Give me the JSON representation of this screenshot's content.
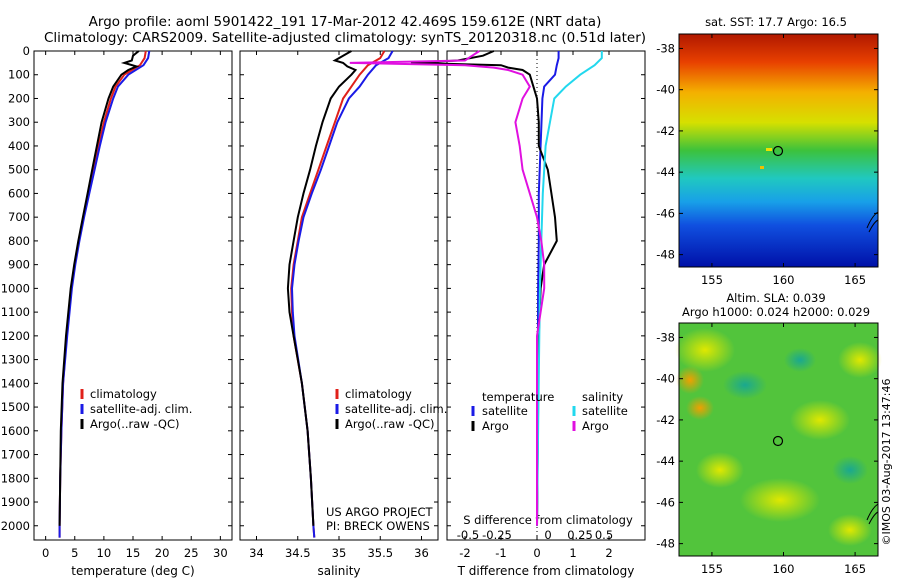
{
  "header": {
    "line1": "Argo profile: aoml 5901422_191 17-Mar-2012 42.469S 159.612E (NRT data)",
    "line2": "Climatology: CARS2009. Satellite-adjusted climatology: synTS_20120318.nc (0.51d later)"
  },
  "colors": {
    "climatology": "#e0201a",
    "satellite": "#1a1ae6",
    "argo": "#000000",
    "sal_satellite": "#22d8ee",
    "sal_argo": "#e010e0"
  },
  "depth_axis": {
    "ticks": [
      "0",
      "100",
      "200",
      "300",
      "400",
      "500",
      "600",
      "700",
      "800",
      "900",
      "1000",
      "1100",
      "1200",
      "1300",
      "1400",
      "1500",
      "1600",
      "1700",
      "1800",
      "1900",
      "2000"
    ]
  },
  "chart_data": [
    {
      "type": "line",
      "xlabel": "temperature (deg C)",
      "xlim": [
        -2,
        32
      ],
      "ylim": [
        0,
        2060
      ],
      "xticks": [
        "0",
        "5",
        "10",
        "15",
        "20",
        "25",
        "30"
      ],
      "legend": [
        "climatology",
        "satellite-adj. clim.",
        "Argo(..raw -QC)"
      ],
      "legend_position": "lower-center",
      "series": [
        {
          "name": "climatology",
          "color": "#e0201a",
          "depth": [
            0,
            30,
            60,
            100,
            150,
            200,
            300,
            400,
            500,
            600,
            700,
            800,
            900,
            1000,
            1200,
            1400,
            1600,
            1800,
            2000,
            2050
          ],
          "values": [
            17.2,
            17.0,
            16.2,
            13.5,
            12.0,
            11.2,
            10.0,
            9.1,
            8.2,
            7.3,
            6.5,
            5.7,
            5.0,
            4.4,
            3.6,
            3.0,
            2.7,
            2.5,
            2.4,
            2.4
          ]
        },
        {
          "name": "satellite-adj. clim.",
          "color": "#1a1ae6",
          "depth": [
            0,
            30,
            60,
            100,
            150,
            200,
            300,
            400,
            500,
            600,
            700,
            800,
            900,
            1000,
            1200,
            1400,
            1600,
            1800,
            2000,
            2050
          ],
          "values": [
            17.8,
            17.6,
            16.8,
            14.2,
            12.4,
            11.6,
            10.3,
            9.3,
            8.4,
            7.5,
            6.6,
            5.8,
            5.1,
            4.5,
            3.7,
            3.0,
            2.7,
            2.5,
            2.4,
            2.4
          ]
        },
        {
          "name": "Argo(..raw -QC)",
          "color": "#000000",
          "depth": [
            0,
            20,
            40,
            50,
            65,
            80,
            100,
            150,
            200,
            300,
            400,
            500,
            600,
            700,
            800,
            900,
            1000,
            1200,
            1400,
            1600,
            1800,
            2000
          ],
          "values": [
            16.0,
            15.0,
            14.8,
            13.5,
            15.6,
            14.2,
            13.0,
            11.6,
            10.8,
            9.6,
            8.8,
            8.0,
            7.2,
            6.4,
            5.6,
            4.9,
            4.3,
            3.5,
            2.9,
            2.6,
            2.5,
            2.4
          ]
        }
      ]
    },
    {
      "type": "line",
      "xlabel": "salinity",
      "xlim": [
        33.8,
        36.2
      ],
      "ylim": [
        0,
        2060
      ],
      "xticks": [
        "34",
        "34.5",
        "35",
        "35.5",
        "36"
      ],
      "legend": [
        "climatology",
        "satellite-adj. clim.",
        "Argo(..raw -QC)"
      ],
      "legend_position": "lower-center",
      "annotation": [
        "US ARGO PROJECT",
        "PI: BRECK OWENS"
      ],
      "series": [
        {
          "name": "climatology",
          "color": "#e0201a",
          "depth": [
            0,
            30,
            60,
            100,
            150,
            200,
            300,
            400,
            500,
            600,
            700,
            800,
            900,
            1000,
            1100,
            1200,
            1400,
            1600,
            1800,
            2000,
            2050
          ],
          "values": [
            35.55,
            35.5,
            35.35,
            35.25,
            35.15,
            35.05,
            34.95,
            34.85,
            34.75,
            34.65,
            34.55,
            34.5,
            34.45,
            34.42,
            34.43,
            34.45,
            34.55,
            34.62,
            34.66,
            34.69,
            34.7
          ]
        },
        {
          "name": "satellite-adj. clim.",
          "color": "#1a1ae6",
          "depth": [
            0,
            30,
            60,
            100,
            150,
            200,
            300,
            400,
            500,
            600,
            700,
            800,
            900,
            1000,
            1100,
            1200,
            1400,
            1600,
            1800,
            2000,
            2050
          ],
          "values": [
            35.65,
            35.6,
            35.45,
            35.35,
            35.25,
            35.12,
            34.98,
            34.88,
            34.78,
            34.67,
            34.57,
            34.51,
            34.46,
            34.43,
            34.44,
            34.46,
            34.55,
            34.62,
            34.66,
            34.69,
            34.7
          ]
        },
        {
          "name": "Argo(..raw -QC)",
          "color": "#000000",
          "depth": [
            0,
            20,
            40,
            50,
            65,
            80,
            100,
            150,
            200,
            300,
            400,
            500,
            600,
            700,
            800,
            900,
            1000,
            1100,
            1200,
            1300,
            1400,
            1600,
            1800,
            2000
          ],
          "values": [
            35.15,
            35.05,
            34.95,
            35.05,
            35.1,
            35.2,
            35.15,
            35.0,
            34.9,
            34.8,
            34.72,
            34.65,
            34.57,
            34.5,
            34.45,
            34.4,
            34.38,
            34.4,
            34.45,
            34.5,
            34.55,
            34.62,
            34.66,
            34.69
          ]
        }
      ]
    },
    {
      "type": "line",
      "xlabel": "T difference from climatology",
      "top_label": "S difference from climatology",
      "xlim": [
        -2.5,
        3
      ],
      "ylim": [
        0,
        2060
      ],
      "xticks": [
        "-2",
        "-1",
        "0",
        "1",
        "2"
      ],
      "sticks": [
        "-0.5",
        "-0.25",
        "0",
        "0.25",
        "0.5"
      ],
      "legend_temperature": [
        "temperature",
        "satellite",
        "Argo"
      ],
      "legend_salinity": [
        "salinity",
        "satellite",
        "Argo"
      ],
      "legend_position": "lower-center",
      "series": [
        {
          "name": "temperature satellite",
          "color": "#1a1ae6",
          "depth": [
            0,
            30,
            60,
            100,
            150,
            200,
            400,
            600,
            800,
            1000,
            1500,
            2000
          ],
          "values": [
            0.6,
            0.6,
            0.55,
            0.5,
            0.2,
            0.15,
            0.1,
            0.05,
            0.05,
            0.03,
            0.02,
            0.0
          ]
        },
        {
          "name": "temperature Argo",
          "color": "#000000",
          "depth": [
            0,
            20,
            40,
            50,
            60,
            70,
            80,
            100,
            150,
            200,
            300,
            400,
            500,
            600,
            700,
            800,
            900,
            1000,
            1200,
            1500,
            2000
          ],
          "values": [
            -1.2,
            -1.5,
            -2.2,
            -3.5,
            -1.0,
            -0.8,
            -0.4,
            -0.2,
            -0.1,
            0.0,
            0.05,
            0.05,
            0.3,
            0.4,
            0.5,
            0.55,
            0.2,
            0.1,
            0.05,
            0.03,
            0.0
          ]
        },
        {
          "name": "salinity satellite",
          "color": "#22d8ee",
          "depth": [
            0,
            30,
            60,
            100,
            150,
            200,
            400,
            600,
            800,
            1000,
            1500,
            2000
          ],
          "values": [
            0.45,
            0.45,
            0.4,
            0.3,
            0.2,
            0.12,
            0.06,
            0.04,
            0.03,
            0.02,
            0.01,
            0.0
          ]
        },
        {
          "name": "salinity Argo",
          "color": "#e010e0",
          "depth": [
            0,
            20,
            40,
            50,
            60,
            70,
            80,
            100,
            150,
            200,
            300,
            400,
            500,
            600,
            700,
            800,
            900,
            1000,
            1200,
            1500,
            2000
          ],
          "values": [
            -0.4,
            -0.45,
            -0.5,
            -1.3,
            -0.5,
            -0.3,
            -0.2,
            -0.1,
            -0.05,
            -0.1,
            -0.15,
            -0.12,
            -0.1,
            -0.05,
            0.0,
            0.03,
            0.05,
            0.05,
            0.0,
            0.0,
            0.0
          ]
        }
      ]
    }
  ],
  "sst_map": {
    "title": "sat. SST: 17.7 Argo: 16.5",
    "lat_ticks": [
      "-38",
      "-40",
      "-42",
      "-44",
      "-46",
      "-48"
    ],
    "lon_ticks": [
      "155",
      "160",
      "165"
    ]
  },
  "sla_map": {
    "title1": "Altim. SLA: 0.039",
    "title2": "Argo h1000: 0.024 h2000: 0.029",
    "lat_ticks": [
      "-38",
      "-40",
      "-42",
      "-44",
      "-46",
      "-48"
    ],
    "lon_ticks": [
      "155",
      "160",
      "165"
    ]
  },
  "credit": "©IMOS 03-Aug-2017 13:47:46"
}
